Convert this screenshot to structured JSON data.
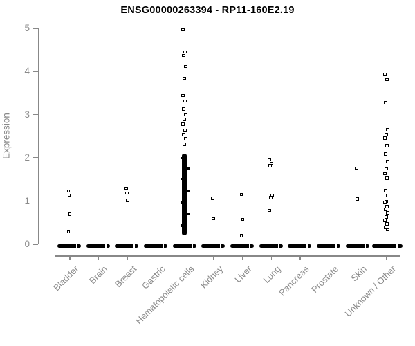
{
  "title": "ENSG00000263394 - RP11-160E2.19",
  "y_axis": {
    "label": "Expression",
    "tick_labels": [
      "0",
      "1",
      "2",
      "3",
      "4",
      "5"
    ]
  },
  "chart_data": {
    "type": "scatter",
    "title": "ENSG00000263394 - RP11-160E2.19",
    "xlabel": "",
    "ylabel": "Expression",
    "ylim": [
      0,
      5
    ],
    "y_ticks": [
      0,
      1,
      2,
      3,
      4,
      5
    ],
    "grid": false,
    "legend": false,
    "marker": "open-square",
    "colors": {
      "point": "#000000",
      "axis": "#888888",
      "tick_text": "#8a8a8a",
      "title_text": "#000000"
    },
    "categories": [
      "Bladder",
      "Brain",
      "Breast",
      "Gastric",
      "Hematopoietic cells",
      "Kidney",
      "Liver",
      "Lung",
      "Pancreas",
      "Prostate",
      "Skin",
      "Unknown / Other"
    ],
    "series": [
      {
        "name": "Bladder",
        "points": [
          1.22,
          1.12,
          0.68,
          0.27
        ],
        "zero_bar": true
      },
      {
        "name": "Brain",
        "points": [],
        "zero_bar": true
      },
      {
        "name": "Breast",
        "points": [
          1.28,
          1.17,
          1.0
        ],
        "zero_bar": true
      },
      {
        "name": "Gastric",
        "points": [],
        "zero_bar": true
      },
      {
        "name": "Hematopoietic cells",
        "points": [
          4.95,
          4.44,
          4.36,
          4.1,
          3.83,
          3.43,
          3.3,
          3.12,
          2.98,
          2.88,
          2.76,
          2.62,
          2.52,
          2.43,
          2.3
        ],
        "dense_range": [
          0.2,
          2.08
        ],
        "zero_bar": true
      },
      {
        "name": "Kidney",
        "points": [
          1.05,
          0.58
        ],
        "zero_bar": true
      },
      {
        "name": "Liver",
        "points": [
          1.14,
          0.8,
          0.56,
          0.18
        ],
        "zero_bar": true
      },
      {
        "name": "Lung",
        "points": [
          1.94,
          1.86,
          1.8,
          1.12,
          1.07,
          0.77,
          0.64
        ],
        "zero_bar": true
      },
      {
        "name": "Pancreas",
        "points": [],
        "zero_bar": true
      },
      {
        "name": "Prostate",
        "points": [],
        "zero_bar": true
      },
      {
        "name": "Skin",
        "points": [
          1.75,
          1.03
        ],
        "zero_bar": true
      },
      {
        "name": "Unknown / Other",
        "points": [
          3.92,
          3.8,
          3.26,
          2.64,
          2.52,
          2.44,
          2.27,
          2.08,
          1.9,
          1.73,
          1.62,
          1.51,
          1.23,
          1.11,
          0.97,
          0.95,
          0.86,
          0.79,
          0.71,
          0.62,
          0.54,
          0.46,
          0.38,
          0.32
        ],
        "zero_bar": true,
        "wide_zero_bar": true
      }
    ]
  }
}
